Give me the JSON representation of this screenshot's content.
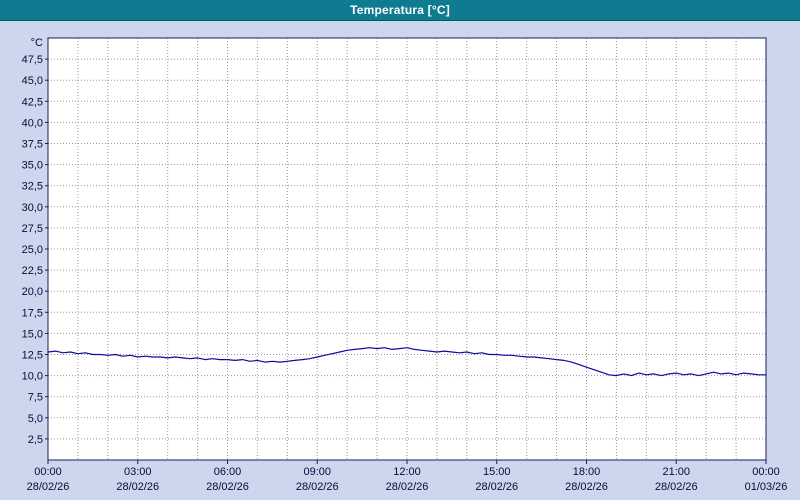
{
  "title_bar": {
    "title": "Temperatura [°C]"
  },
  "colors": {
    "background": "#ccd6ec",
    "title_bg": "#0e7b91",
    "title_text": "#ffffff",
    "plot_bg": "#ffffff",
    "plot_border": "#1c1c60",
    "grid": "#999999",
    "label": "#0a0a3c",
    "line": "#0b0b9d"
  },
  "chart_data": {
    "type": "line",
    "title": "Temperatura [°C]",
    "y_unit_label": "°C",
    "ylim": [
      0,
      50
    ],
    "y_tick_step": 2.5,
    "y_tick_labels": [
      "47,5",
      "45,0",
      "42,5",
      "40,0",
      "37,5",
      "35,0",
      "32,5",
      "30,0",
      "27,5",
      "25,0",
      "22,5",
      "20,0",
      "17,5",
      "15,0",
      "12,5",
      "10,0",
      "7,5",
      "5,0",
      "2,5"
    ],
    "x_hours_range": [
      0,
      24
    ],
    "x_gridline_every_hours": 1,
    "grid_style": "dotted",
    "legend": "none",
    "x_ticks": [
      {
        "hour": 0,
        "time": "00:00",
        "date": "28/02/26"
      },
      {
        "hour": 3,
        "time": "03:00",
        "date": "28/02/26"
      },
      {
        "hour": 6,
        "time": "06:00",
        "date": "28/02/26"
      },
      {
        "hour": 9,
        "time": "09:00",
        "date": "28/02/26"
      },
      {
        "hour": 12,
        "time": "12:00",
        "date": "28/02/26"
      },
      {
        "hour": 15,
        "time": "15:00",
        "date": "28/02/26"
      },
      {
        "hour": 18,
        "time": "18:00",
        "date": "28/02/26"
      },
      {
        "hour": 21,
        "time": "21:00",
        "date": "28/02/26"
      },
      {
        "hour": 24,
        "time": "00:00",
        "date": "01/03/26"
      }
    ],
    "series": [
      {
        "name": "Temperatura",
        "color": "#0b0b9d",
        "points": [
          [
            0,
            12.8
          ],
          [
            0.25,
            12.9
          ],
          [
            0.5,
            12.7
          ],
          [
            0.75,
            12.8
          ],
          [
            1,
            12.6
          ],
          [
            1.25,
            12.7
          ],
          [
            1.5,
            12.5
          ],
          [
            1.75,
            12.5
          ],
          [
            2,
            12.4
          ],
          [
            2.25,
            12.5
          ],
          [
            2.5,
            12.3
          ],
          [
            2.75,
            12.4
          ],
          [
            3,
            12.2
          ],
          [
            3.25,
            12.3
          ],
          [
            3.5,
            12.2
          ],
          [
            3.75,
            12.2
          ],
          [
            4,
            12.1
          ],
          [
            4.25,
            12.2
          ],
          [
            4.5,
            12.1
          ],
          [
            4.75,
            12
          ],
          [
            5,
            12.1
          ],
          [
            5.25,
            11.9
          ],
          [
            5.5,
            12
          ],
          [
            5.75,
            11.9
          ],
          [
            6,
            11.9
          ],
          [
            6.25,
            11.8
          ],
          [
            6.5,
            11.9
          ],
          [
            6.75,
            11.7
          ],
          [
            7,
            11.8
          ],
          [
            7.25,
            11.6
          ],
          [
            7.5,
            11.7
          ],
          [
            7.75,
            11.6
          ],
          [
            8,
            11.7
          ],
          [
            8.25,
            11.8
          ],
          [
            8.5,
            11.9
          ],
          [
            8.75,
            12
          ],
          [
            9,
            12.2
          ],
          [
            9.25,
            12.4
          ],
          [
            9.5,
            12.6
          ],
          [
            9.75,
            12.8
          ],
          [
            10,
            13
          ],
          [
            10.25,
            13.1
          ],
          [
            10.5,
            13.2
          ],
          [
            10.75,
            13.3
          ],
          [
            11,
            13.2
          ],
          [
            11.25,
            13.3
          ],
          [
            11.5,
            13.1
          ],
          [
            11.75,
            13.2
          ],
          [
            12,
            13.3
          ],
          [
            12.25,
            13.1
          ],
          [
            12.5,
            13
          ],
          [
            12.75,
            12.9
          ],
          [
            13,
            12.8
          ],
          [
            13.25,
            12.9
          ],
          [
            13.5,
            12.8
          ],
          [
            13.75,
            12.7
          ],
          [
            14,
            12.8
          ],
          [
            14.25,
            12.6
          ],
          [
            14.5,
            12.7
          ],
          [
            14.75,
            12.5
          ],
          [
            15,
            12.5
          ],
          [
            15.25,
            12.4
          ],
          [
            15.5,
            12.4
          ],
          [
            15.75,
            12.3
          ],
          [
            16,
            12.2
          ],
          [
            16.25,
            12.2
          ],
          [
            16.5,
            12.1
          ],
          [
            16.75,
            12
          ],
          [
            17,
            11.9
          ],
          [
            17.25,
            11.8
          ],
          [
            17.5,
            11.6
          ],
          [
            17.75,
            11.3
          ],
          [
            18,
            11
          ],
          [
            18.25,
            10.7
          ],
          [
            18.5,
            10.4
          ],
          [
            18.75,
            10.1
          ],
          [
            19,
            10
          ],
          [
            19.25,
            10.2
          ],
          [
            19.5,
            10
          ],
          [
            19.75,
            10.3
          ],
          [
            20,
            10.1
          ],
          [
            20.25,
            10.2
          ],
          [
            20.5,
            10
          ],
          [
            20.75,
            10.2
          ],
          [
            21,
            10.3
          ],
          [
            21.25,
            10.1
          ],
          [
            21.5,
            10.2
          ],
          [
            21.75,
            10
          ],
          [
            22,
            10.2
          ],
          [
            22.25,
            10.4
          ],
          [
            22.5,
            10.2
          ],
          [
            22.75,
            10.3
          ],
          [
            23,
            10.1
          ],
          [
            23.25,
            10.3
          ],
          [
            23.5,
            10.2
          ],
          [
            23.75,
            10.1
          ],
          [
            24,
            10.1
          ]
        ]
      }
    ]
  }
}
